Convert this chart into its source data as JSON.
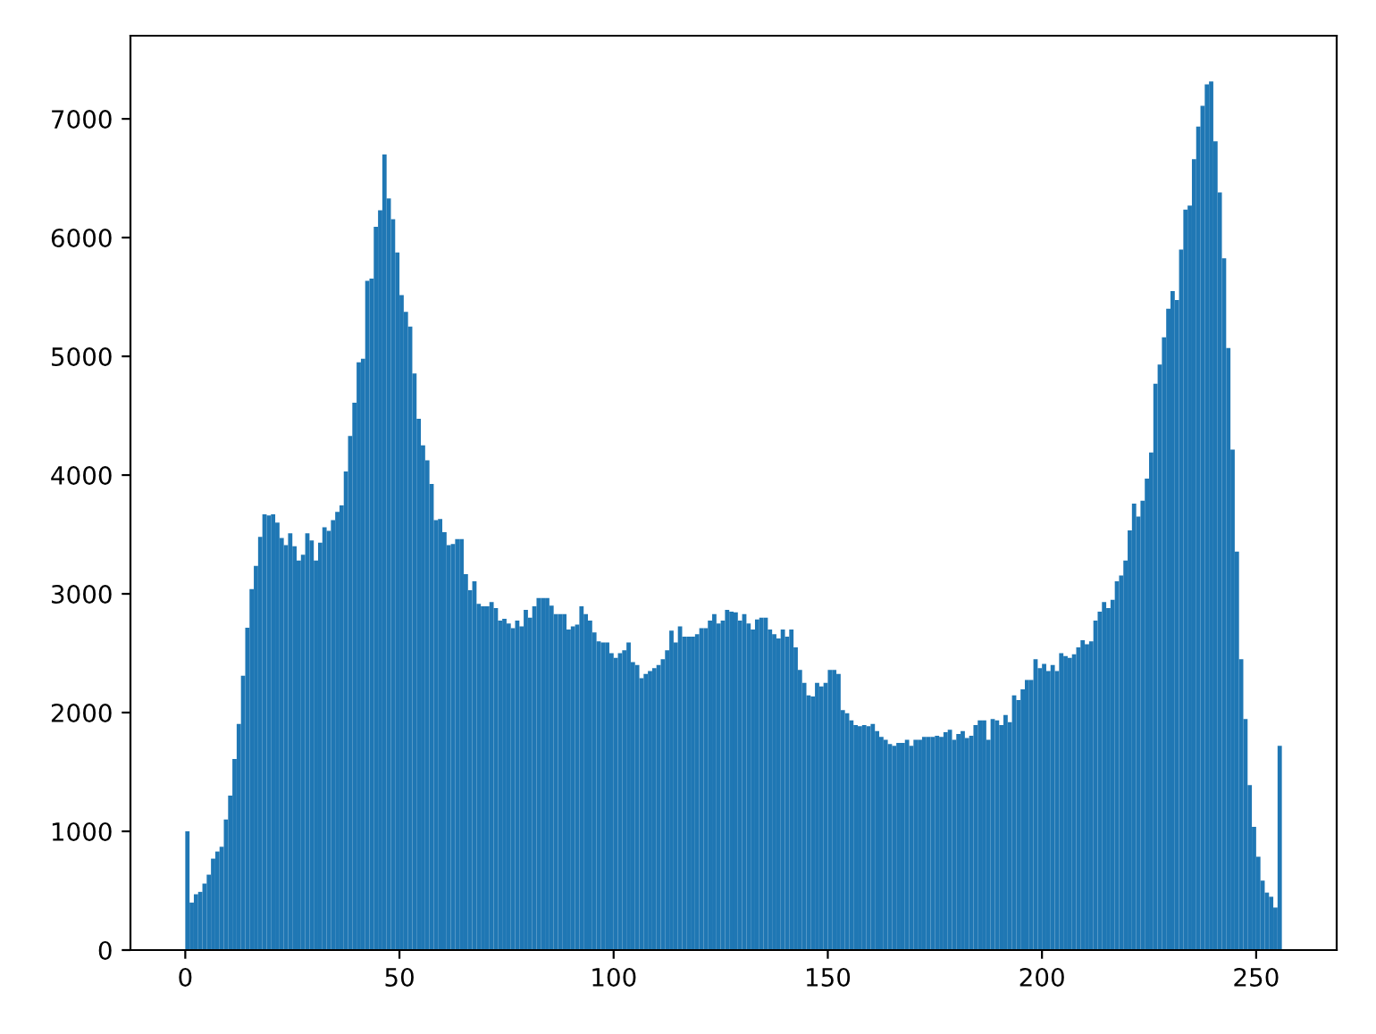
{
  "chart_data": {
    "type": "histogram",
    "bins": [
      0,
      1,
      2,
      3,
      4,
      5,
      6,
      7,
      8,
      9,
      10,
      11,
      12,
      13,
      14,
      15,
      16,
      17,
      18,
      19,
      20,
      21,
      22,
      23,
      24,
      25,
      26,
      27,
      28,
      29,
      30,
      31,
      32,
      33,
      34,
      35,
      36,
      37,
      38,
      39,
      40,
      41,
      42,
      43,
      44,
      45,
      46,
      47,
      48,
      49,
      50,
      51,
      52,
      53,
      54,
      55,
      56,
      57,
      58,
      59,
      60,
      61,
      62,
      63,
      64,
      65,
      66,
      67,
      68,
      69,
      70,
      71,
      72,
      73,
      74,
      75,
      76,
      77,
      78,
      79,
      80,
      81,
      82,
      83,
      84,
      85,
      86,
      87,
      88,
      89,
      90,
      91,
      92,
      93,
      94,
      95,
      96,
      97,
      98,
      99,
      100,
      101,
      102,
      103,
      104,
      105,
      106,
      107,
      108,
      109,
      110,
      111,
      112,
      113,
      114,
      115,
      116,
      117,
      118,
      119,
      120,
      121,
      122,
      123,
      124,
      125,
      126,
      127,
      128,
      129,
      130,
      131,
      132,
      133,
      134,
      135,
      136,
      137,
      138,
      139,
      140,
      141,
      142,
      143,
      144,
      145,
      146,
      147,
      148,
      149,
      150,
      151,
      152,
      153,
      154,
      155,
      156,
      157,
      158,
      159,
      160,
      161,
      162,
      163,
      164,
      165,
      166,
      167,
      168,
      169,
      170,
      171,
      172,
      173,
      174,
      175,
      176,
      177,
      178,
      179,
      180,
      181,
      182,
      183,
      184,
      185,
      186,
      187,
      188,
      189,
      190,
      191,
      192,
      193,
      194,
      195,
      196,
      197,
      198,
      199,
      200,
      201,
      202,
      203,
      204,
      205,
      206,
      207,
      208,
      209,
      210,
      211,
      212,
      213,
      214,
      215,
      216,
      217,
      218,
      219,
      220,
      221,
      222,
      223,
      224,
      225,
      226,
      227,
      228,
      229,
      230,
      231,
      232,
      233,
      234,
      235,
      236,
      237,
      238,
      239,
      240,
      241,
      242,
      243,
      244,
      245,
      246,
      247,
      248,
      249,
      250,
      251,
      252,
      253,
      254,
      255,
      256
    ],
    "values": [
      1000,
      400,
      470,
      490,
      560,
      635,
      770,
      830,
      870,
      1100,
      1300,
      1610,
      1905,
      2310,
      2715,
      3040,
      3235,
      3480,
      3670,
      3660,
      3670,
      3600,
      3470,
      3410,
      3510,
      3400,
      3280,
      3330,
      3510,
      3450,
      3280,
      3430,
      3560,
      3530,
      3620,
      3690,
      3745,
      4030,
      4330,
      4610,
      4950,
      4980,
      5635,
      5655,
      6090,
      6230,
      6700,
      6330,
      6155,
      5875,
      5515,
      5375,
      5250,
      4855,
      4475,
      4250,
      4125,
      3925,
      3620,
      3630,
      3520,
      3410,
      3420,
      3460,
      3460,
      3165,
      3030,
      3105,
      2915,
      2895,
      2895,
      2930,
      2880,
      2775,
      2790,
      2750,
      2710,
      2775,
      2725,
      2865,
      2800,
      2895,
      2965,
      2965,
      2965,
      2900,
      2830,
      2830,
      2830,
      2700,
      2725,
      2740,
      2895,
      2830,
      2775,
      2675,
      2600,
      2590,
      2590,
      2500,
      2460,
      2500,
      2525,
      2590,
      2425,
      2400,
      2290,
      2325,
      2350,
      2375,
      2400,
      2450,
      2525,
      2690,
      2590,
      2725,
      2640,
      2640,
      2640,
      2660,
      2710,
      2710,
      2775,
      2830,
      2750,
      2775,
      2865,
      2850,
      2845,
      2775,
      2830,
      2750,
      2700,
      2785,
      2800,
      2800,
      2700,
      2660,
      2625,
      2700,
      2640,
      2700,
      2550,
      2360,
      2250,
      2145,
      2135,
      2250,
      2220,
      2250,
      2360,
      2360,
      2325,
      2020,
      1995,
      1935,
      1895,
      1885,
      1895,
      1885,
      1905,
      1845,
      1795,
      1770,
      1735,
      1720,
      1745,
      1745,
      1770,
      1720,
      1770,
      1770,
      1795,
      1795,
      1795,
      1805,
      1795,
      1835,
      1855,
      1770,
      1820,
      1845,
      1785,
      1805,
      1895,
      1935,
      1935,
      1770,
      1945,
      1935,
      1895,
      1980,
      1920,
      2145,
      2105,
      2195,
      2275,
      2275,
      2450,
      2375,
      2410,
      2350,
      2400,
      2350,
      2500,
      2475,
      2460,
      2490,
      2550,
      2610,
      2575,
      2600,
      2775,
      2850,
      2930,
      2880,
      2950,
      3105,
      3155,
      3280,
      3535,
      3760,
      3650,
      3785,
      3970,
      4190,
      4770,
      4930,
      5160,
      5400,
      5550,
      5475,
      5900,
      6235,
      6270,
      6660,
      6935,
      7110,
      7290,
      7315,
      6810,
      6380,
      5825,
      5070,
      4215,
      3355,
      2450,
      1945,
      1390,
      1038,
      786,
      585,
      484,
      449,
      358,
      1720
    ],
    "color": "#1f77b4",
    "xlim": [
      -12.8,
      268.8
    ],
    "xticks": [
      0,
      50,
      100,
      150,
      200,
      250
    ],
    "ylim": [
      0,
      7700
    ],
    "yticks": [
      0,
      1000,
      2000,
      3000,
      4000,
      5000,
      6000,
      7000
    ],
    "grid": false,
    "legend": false
  }
}
